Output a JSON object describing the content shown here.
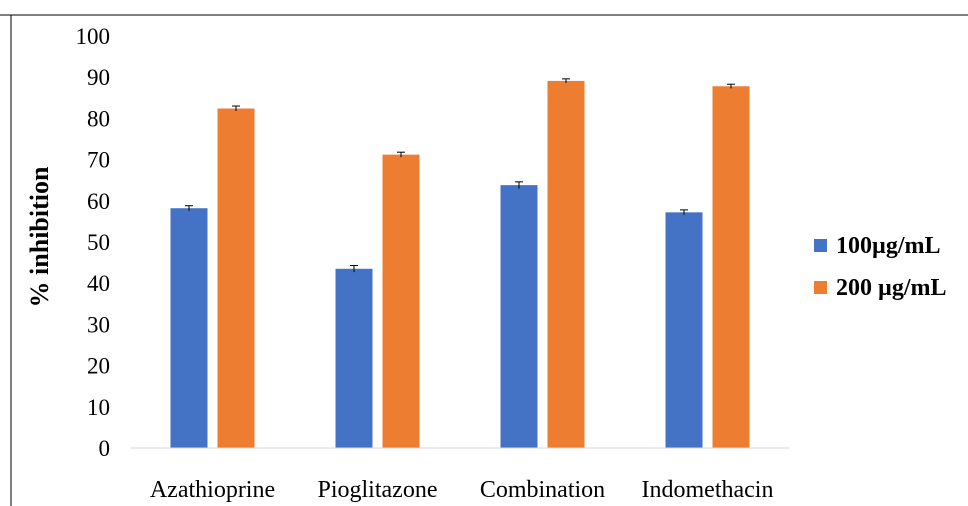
{
  "chart_data": {
    "type": "bar",
    "title": "",
    "xlabel": "",
    "ylabel": "% inhibition",
    "ylim": [
      0,
      100
    ],
    "yticks": [
      0,
      10,
      20,
      30,
      40,
      50,
      60,
      70,
      80,
      90,
      100
    ],
    "categories": [
      "Azathioprine",
      "Pioglitazone",
      "Combination",
      "Indomethacin"
    ],
    "series": [
      {
        "name": "100µg/mL",
        "color": "#4472c4",
        "values": [
          58.2,
          43.5,
          63.8,
          57.2
        ],
        "errors": [
          0.6,
          0.8,
          0.8,
          0.6
        ]
      },
      {
        "name": "200 µg/mL",
        "color": "#ed7d31",
        "values": [
          82.4,
          71.2,
          89.1,
          87.8
        ],
        "errors": [
          0.6,
          0.6,
          0.5,
          0.5
        ]
      }
    ],
    "grid": false,
    "legend_position": "right"
  }
}
